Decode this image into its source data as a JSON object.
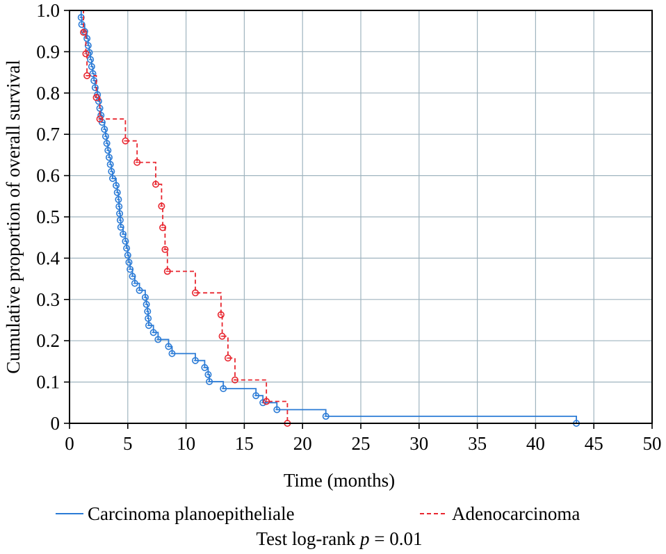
{
  "chart_data": {
    "type": "line",
    "subtype": "kaplan-meier",
    "title": "",
    "xlabel": "Time (months)",
    "ylabel": "Cumulative proportion of overall survival",
    "xlim": [
      0,
      50
    ],
    "ylim": [
      0,
      1.0
    ],
    "xticks": [
      0,
      5,
      10,
      15,
      20,
      25,
      30,
      35,
      40,
      45,
      50
    ],
    "yticks": [
      0,
      0.1,
      0.2,
      0.3,
      0.4,
      0.5,
      0.6,
      0.7,
      0.8,
      0.9,
      1.0
    ],
    "xtick_labels": [
      "0",
      "5",
      "10",
      "15",
      "20",
      "25",
      "30",
      "35",
      "40",
      "45",
      "50"
    ],
    "ytick_labels": [
      "0",
      "0.1",
      "0.2",
      "0.3",
      "0.4",
      "0.5",
      "0.6",
      "0.7",
      "0.8",
      "0.9",
      "1.0"
    ],
    "grid": true,
    "legend_position": "bottom",
    "annotation": {
      "prefix": "Test log-rank ",
      "p_symbol": "p",
      "suffix": " = 0.01"
    },
    "series": [
      {
        "name": "Carcinoma planoepitheliale",
        "color": "#2b7bd6",
        "style": "solid",
        "points": [
          [
            1.0,
            1.0
          ],
          [
            1.0,
            0.983
          ],
          [
            1.05,
            0.966
          ],
          [
            1.3,
            0.949
          ],
          [
            1.5,
            0.932
          ],
          [
            1.6,
            0.915
          ],
          [
            1.7,
            0.898
          ],
          [
            1.8,
            0.881
          ],
          [
            1.9,
            0.864
          ],
          [
            2.0,
            0.847
          ],
          [
            2.1,
            0.83
          ],
          [
            2.2,
            0.813
          ],
          [
            2.4,
            0.796
          ],
          [
            2.5,
            0.78
          ],
          [
            2.6,
            0.763
          ],
          [
            2.7,
            0.746
          ],
          [
            2.8,
            0.729
          ],
          [
            3.0,
            0.712
          ],
          [
            3.1,
            0.695
          ],
          [
            3.2,
            0.678
          ],
          [
            3.3,
            0.661
          ],
          [
            3.4,
            0.644
          ],
          [
            3.5,
            0.627
          ],
          [
            3.6,
            0.61
          ],
          [
            3.7,
            0.593
          ],
          [
            4.0,
            0.576
          ],
          [
            4.1,
            0.559
          ],
          [
            4.2,
            0.542
          ],
          [
            4.25,
            0.525
          ],
          [
            4.3,
            0.508
          ],
          [
            4.35,
            0.492
          ],
          [
            4.4,
            0.475
          ],
          [
            4.6,
            0.458
          ],
          [
            4.8,
            0.441
          ],
          [
            4.9,
            0.424
          ],
          [
            5.0,
            0.407
          ],
          [
            5.1,
            0.39
          ],
          [
            5.2,
            0.373
          ],
          [
            5.4,
            0.356
          ],
          [
            5.6,
            0.339
          ],
          [
            6.0,
            0.322
          ],
          [
            6.5,
            0.305
          ],
          [
            6.6,
            0.288
          ],
          [
            6.7,
            0.271
          ],
          [
            6.75,
            0.254
          ],
          [
            6.8,
            0.237
          ],
          [
            7.2,
            0.22
          ],
          [
            7.6,
            0.203
          ],
          [
            8.5,
            0.186
          ],
          [
            8.8,
            0.169
          ],
          [
            9.0,
            0.169
          ],
          [
            10.8,
            0.152
          ],
          [
            11.2,
            0.152
          ],
          [
            11.6,
            0.135
          ],
          [
            11.9,
            0.118
          ],
          [
            12.0,
            0.101
          ],
          [
            13.0,
            0.101
          ],
          [
            13.2,
            0.084
          ],
          [
            16.0,
            0.067
          ],
          [
            16.6,
            0.05
          ],
          [
            17.0,
            0.05
          ],
          [
            17.8,
            0.033
          ],
          [
            18.0,
            0.033
          ],
          [
            22.0,
            0.017
          ],
          [
            43.5,
            0.0
          ]
        ],
        "censored_marks": [
          [
            1.0,
            0.983
          ],
          [
            1.05,
            0.966
          ],
          [
            1.3,
            0.949
          ],
          [
            1.5,
            0.932
          ],
          [
            1.6,
            0.915
          ],
          [
            1.7,
            0.898
          ],
          [
            1.8,
            0.881
          ],
          [
            1.9,
            0.864
          ],
          [
            2.0,
            0.847
          ],
          [
            2.1,
            0.83
          ],
          [
            2.2,
            0.813
          ],
          [
            2.4,
            0.796
          ],
          [
            2.5,
            0.78
          ],
          [
            2.6,
            0.763
          ],
          [
            2.7,
            0.746
          ],
          [
            2.8,
            0.729
          ],
          [
            3.0,
            0.712
          ],
          [
            3.1,
            0.695
          ],
          [
            3.2,
            0.678
          ],
          [
            3.3,
            0.661
          ],
          [
            3.4,
            0.644
          ],
          [
            3.5,
            0.627
          ],
          [
            3.6,
            0.61
          ],
          [
            3.7,
            0.593
          ],
          [
            4.0,
            0.576
          ],
          [
            4.1,
            0.559
          ],
          [
            4.2,
            0.542
          ],
          [
            4.25,
            0.525
          ],
          [
            4.3,
            0.508
          ],
          [
            4.35,
            0.492
          ],
          [
            4.4,
            0.475
          ],
          [
            4.6,
            0.458
          ],
          [
            4.8,
            0.441
          ],
          [
            4.9,
            0.424
          ],
          [
            5.0,
            0.407
          ],
          [
            5.1,
            0.39
          ],
          [
            5.2,
            0.373
          ],
          [
            5.4,
            0.356
          ],
          [
            5.6,
            0.339
          ],
          [
            6.0,
            0.322
          ],
          [
            6.5,
            0.305
          ],
          [
            6.6,
            0.288
          ],
          [
            6.7,
            0.271
          ],
          [
            6.75,
            0.254
          ],
          [
            6.8,
            0.237
          ],
          [
            7.2,
            0.22
          ],
          [
            7.6,
            0.203
          ],
          [
            8.5,
            0.186
          ],
          [
            8.8,
            0.169
          ],
          [
            10.8,
            0.152
          ],
          [
            11.6,
            0.135
          ],
          [
            11.9,
            0.118
          ],
          [
            12.0,
            0.101
          ],
          [
            13.2,
            0.084
          ],
          [
            16.0,
            0.067
          ],
          [
            16.6,
            0.05
          ],
          [
            17.8,
            0.033
          ],
          [
            22.0,
            0.017
          ],
          [
            43.5,
            0.0
          ]
        ]
      },
      {
        "name": "Adenocarcinoma",
        "color": "#e8262f",
        "style": "dashed",
        "points": [
          [
            1.1,
            1.0
          ],
          [
            1.2,
            0.947
          ],
          [
            1.4,
            0.895
          ],
          [
            1.5,
            0.842
          ],
          [
            2.3,
            0.789
          ],
          [
            2.6,
            0.737
          ],
          [
            4.8,
            0.684
          ],
          [
            5.8,
            0.632
          ],
          [
            7.4,
            0.579
          ],
          [
            7.9,
            0.526
          ],
          [
            8.0,
            0.474
          ],
          [
            8.2,
            0.421
          ],
          [
            8.4,
            0.368
          ],
          [
            10.8,
            0.316
          ],
          [
            13.0,
            0.263
          ],
          [
            13.1,
            0.211
          ],
          [
            13.6,
            0.158
          ],
          [
            14.2,
            0.105
          ],
          [
            16.9,
            0.053
          ],
          [
            18.7,
            0.0
          ]
        ],
        "censored_marks": [
          [
            1.2,
            0.947
          ],
          [
            1.4,
            0.895
          ],
          [
            1.5,
            0.842
          ],
          [
            2.3,
            0.789
          ],
          [
            2.6,
            0.737
          ],
          [
            4.8,
            0.684
          ],
          [
            5.8,
            0.632
          ],
          [
            7.4,
            0.579
          ],
          [
            7.9,
            0.526
          ],
          [
            8.0,
            0.474
          ],
          [
            8.2,
            0.421
          ],
          [
            8.4,
            0.368
          ],
          [
            10.8,
            0.316
          ],
          [
            13.0,
            0.263
          ],
          [
            13.1,
            0.211
          ],
          [
            13.6,
            0.158
          ],
          [
            14.2,
            0.105
          ],
          [
            16.9,
            0.053
          ],
          [
            18.7,
            0.0
          ]
        ]
      }
    ]
  }
}
